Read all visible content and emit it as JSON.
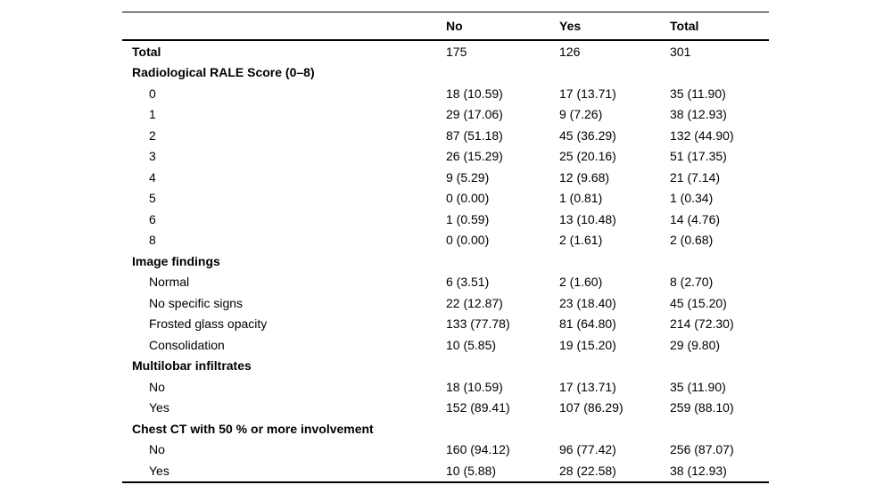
{
  "table": {
    "header": {
      "cols": [
        "No",
        "Yes",
        "Total"
      ]
    },
    "rows": [
      {
        "label": "Total",
        "style": "bold",
        "values": [
          "175",
          "126",
          "301"
        ]
      },
      {
        "label": "Radiological RALE Score (0–8)",
        "style": "bold",
        "values": [
          "",
          "",
          ""
        ]
      },
      {
        "label": "0",
        "style": "indent",
        "values": [
          "18 (10.59)",
          "17 (13.71)",
          "35 (11.90)"
        ]
      },
      {
        "label": "1",
        "style": "indent",
        "values": [
          "29 (17.06)",
          "9 (7.26)",
          "38 (12.93)"
        ]
      },
      {
        "label": "2",
        "style": "indent",
        "values": [
          "87 (51.18)",
          "45 (36.29)",
          "132 (44.90)"
        ]
      },
      {
        "label": "3",
        "style": "indent",
        "values": [
          "26 (15.29)",
          "25 (20.16)",
          "51 (17.35)"
        ]
      },
      {
        "label": "4",
        "style": "indent",
        "values": [
          "9 (5.29)",
          "12 (9.68)",
          "21 (7.14)"
        ]
      },
      {
        "label": "5",
        "style": "indent",
        "values": [
          "0 (0.00)",
          "1 (0.81)",
          "1 (0.34)"
        ]
      },
      {
        "label": "6",
        "style": "indent",
        "values": [
          "1 (0.59)",
          "13 (10.48)",
          "14 (4.76)"
        ]
      },
      {
        "label": "8",
        "style": "indent",
        "values": [
          "0 (0.00)",
          "2 (1.61)",
          "2 (0.68)"
        ]
      },
      {
        "label": "Image findings",
        "style": "bold",
        "values": [
          "",
          "",
          ""
        ]
      },
      {
        "label": "Normal",
        "style": "indent",
        "values": [
          "6 (3.51)",
          "2 (1.60)",
          "8 (2.70)"
        ]
      },
      {
        "label": "No specific signs",
        "style": "indent",
        "values": [
          "22 (12.87)",
          "23 (18.40)",
          "45 (15.20)"
        ]
      },
      {
        "label": "Frosted glass opacity",
        "style": "indent",
        "values": [
          "133 (77.78)",
          "81 (64.80)",
          "214 (72.30)"
        ]
      },
      {
        "label": "Consolidation",
        "style": "indent",
        "values": [
          "10 (5.85)",
          "19 (15.20)",
          "29 (9.80)"
        ]
      },
      {
        "label": "Multilobar infiltrates",
        "style": "bold",
        "values": [
          "",
          "",
          ""
        ]
      },
      {
        "label": "No",
        "style": "indent",
        "values": [
          "18 (10.59)",
          "17 (13.71)",
          "35 (11.90)"
        ]
      },
      {
        "label": "Yes",
        "style": "indent",
        "values": [
          "152 (89.41)",
          "107 (86.29)",
          "259 (88.10)"
        ]
      },
      {
        "label": "Chest CT with 50 % or more involvement",
        "style": "bold",
        "values": [
          "",
          "",
          ""
        ]
      },
      {
        "label": "No",
        "style": "indent",
        "values": [
          "160 (94.12)",
          "96 (77.42)",
          "256 (87.07)"
        ]
      },
      {
        "label": "Yes",
        "style": "indent",
        "values": [
          "10 (5.88)",
          "28 (22.58)",
          "38 (12.93)"
        ]
      }
    ]
  }
}
